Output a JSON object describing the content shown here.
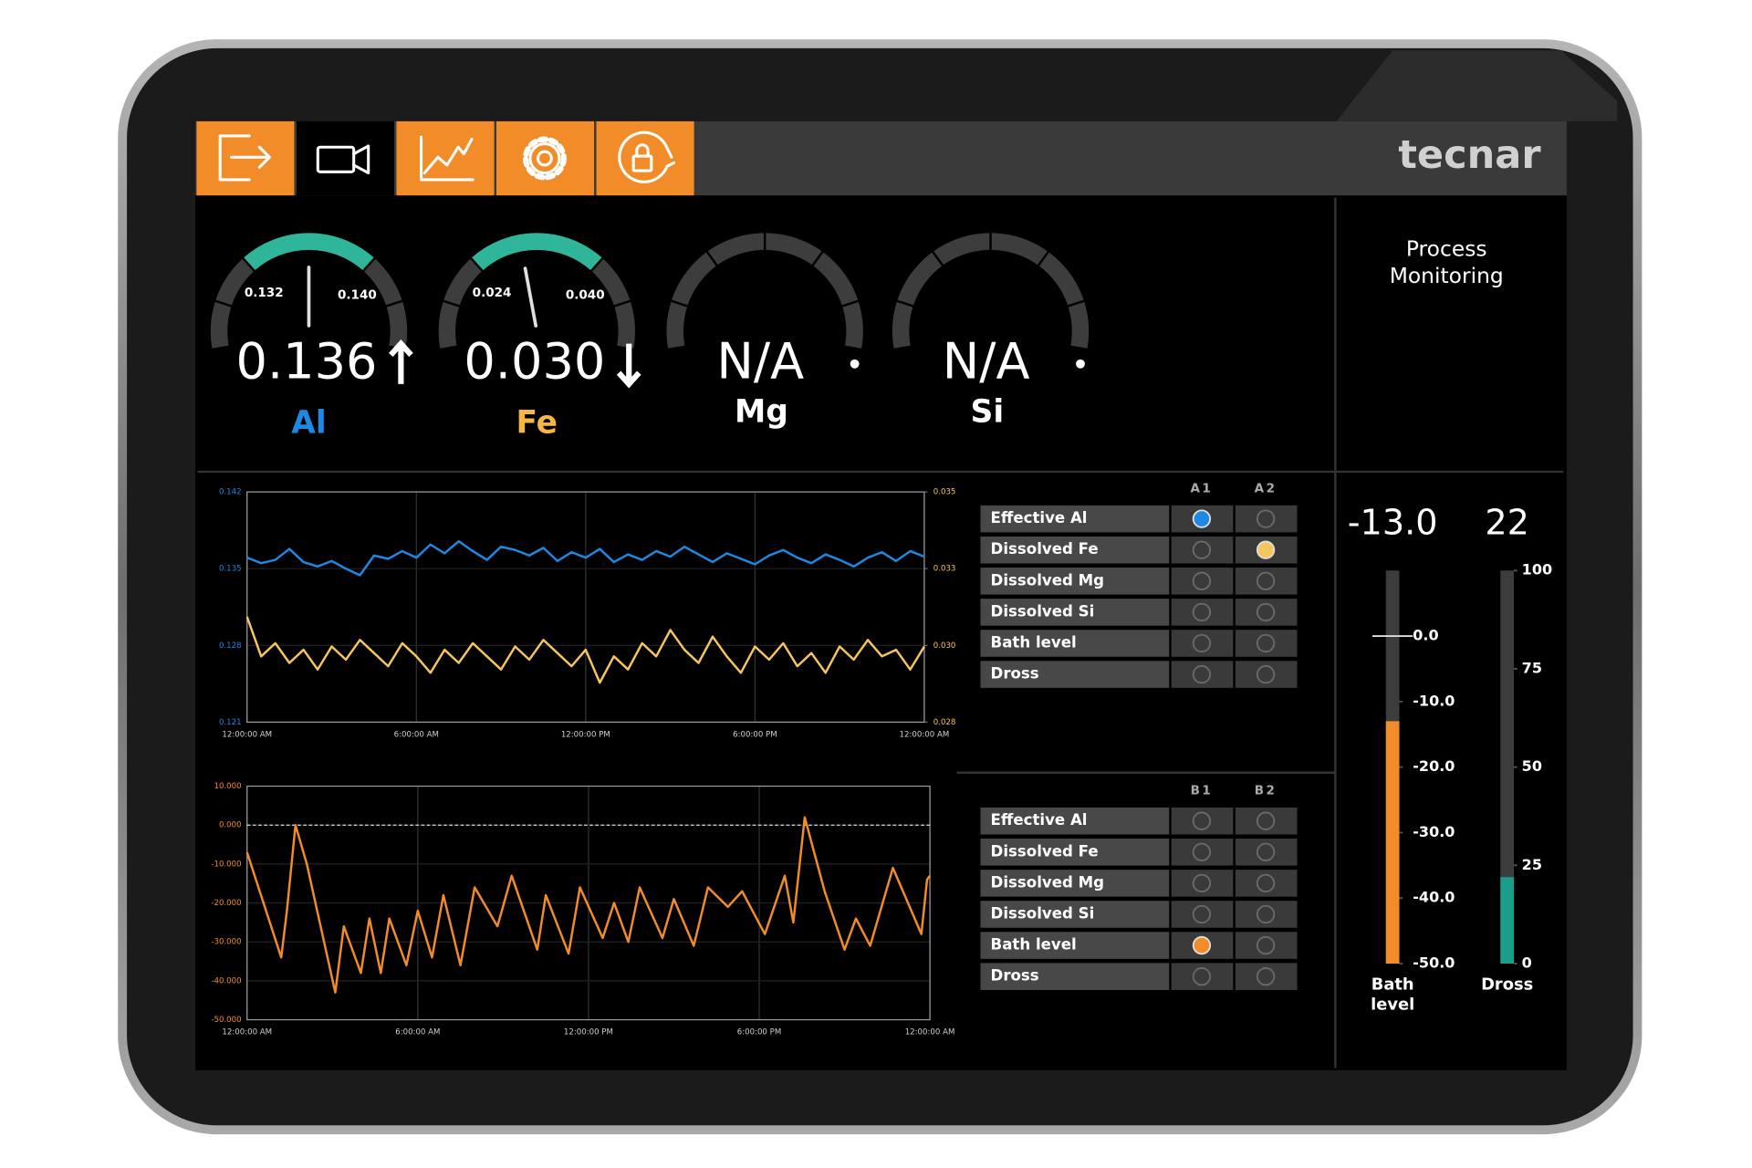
{
  "brand": "tecnar",
  "panel_title": "Process Monitoring",
  "gauges": [
    {
      "element": "Al",
      "value": 0.136,
      "min": 0.132,
      "max": {
        "value": 0.14,
        "label": "0.140"
      },
      "trend": "up",
      "color": "#1e88e5"
    },
    {
      "element": "Fe",
      "value": 0.03,
      "value_label": "0.030",
      "min": 0.024,
      "max": {
        "value": 0.04,
        "label": "0.040"
      },
      "trend": "down",
      "color": "#f5b740"
    },
    {
      "element": "Mg",
      "reading": "N/A",
      "color": "#ffffff"
    },
    {
      "element": "Si",
      "reading": "N/A",
      "color": "#ffffff"
    }
  ],
  "chart_data": [
    {
      "type": "line",
      "xlim": [
        0,
        24
      ],
      "xticks": [
        {
          "value": 0,
          "label": "12:00:00 AM"
        },
        {
          "value": 6,
          "label": "6:00:00 AM"
        },
        {
          "value": 12,
          "label": "12:00:00 PM"
        },
        {
          "value": 18,
          "label": "6:00:00 PM"
        },
        {
          "value": 24,
          "label": "12:00:00 AM"
        }
      ],
      "ylim": [
        0.121,
        0.142
      ],
      "yticks": [
        0.121,
        0.128,
        0.135,
        0.142
      ],
      "y2lim": [
        0.028,
        0.035
      ],
      "y2ticks": [
        0.028,
        {
          "value": 0.03033,
          "label": "0.030"
        },
        {
          "value": 0.03267,
          "label": "0.033"
        },
        0.035
      ],
      "grid": true,
      "x": [
        0,
        0.5,
        1,
        1.5,
        2,
        2.5,
        3,
        3.5,
        4,
        4.5,
        5,
        5.5,
        6,
        6.5,
        7,
        7.5,
        8,
        8.5,
        9,
        9.5,
        10,
        10.5,
        11,
        11.5,
        12,
        12.5,
        13,
        13.5,
        14,
        14.5,
        15,
        15.5,
        16,
        16.5,
        17,
        17.5,
        18,
        18.5,
        19,
        19.5,
        20,
        20.5,
        21,
        21.5,
        22,
        22.5,
        23,
        23.5,
        24
      ],
      "series": [
        {
          "color": "#1e88e5",
          "values": [
            0.136,
            0.1355,
            0.1358,
            0.1368,
            0.1356,
            0.1352,
            0.1357,
            0.135,
            0.1344,
            0.1362,
            0.1359,
            0.1366,
            0.136,
            0.1372,
            0.1364,
            0.1375,
            0.1366,
            0.1358,
            0.137,
            0.1367,
            0.1362,
            0.1369,
            0.1357,
            0.1365,
            0.136,
            0.1368,
            0.1356,
            0.1363,
            0.1358,
            0.1366,
            0.1361,
            0.137,
            0.1363,
            0.1356,
            0.1364,
            0.1359,
            0.1354,
            0.1362,
            0.1367,
            0.136,
            0.1355,
            0.1363,
            0.1358,
            0.1352,
            0.136,
            0.1365,
            0.1357,
            0.1366,
            0.1361
          ]
        },
        {
          "color": "#f7c55e",
          "axis": "y2",
          "values": [
            0.0312,
            0.03,
            0.0304,
            0.0298,
            0.0302,
            0.0296,
            0.0303,
            0.0299,
            0.0305,
            0.0301,
            0.0297,
            0.0304,
            0.03,
            0.0295,
            0.0302,
            0.0298,
            0.0304,
            0.03,
            0.0296,
            0.0303,
            0.0299,
            0.0305,
            0.0301,
            0.0297,
            0.0302,
            0.0292,
            0.03,
            0.0296,
            0.0304,
            0.03,
            0.0308,
            0.0302,
            0.0298,
            0.0306,
            0.03,
            0.0295,
            0.0303,
            0.0299,
            0.0304,
            0.0297,
            0.0301,
            0.0295,
            0.0303,
            0.0299,
            0.0305,
            0.03,
            0.0302,
            0.0296,
            0.0303
          ]
        }
      ]
    },
    {
      "type": "line",
      "xlim": [
        0,
        24
      ],
      "xticks": [
        {
          "value": 0,
          "label": "12:00:00 AM"
        },
        {
          "value": 6,
          "label": "6:00:00 AM"
        },
        {
          "value": 12,
          "label": "12:00:00 PM"
        },
        {
          "value": 18,
          "label": "6:00:00 PM"
        },
        {
          "value": 24,
          "label": "12:00:00 AM"
        }
      ],
      "ylim": [
        -50,
        10
      ],
      "yticks": [
        {
          "value": -50,
          "label": "-50.000"
        },
        {
          "value": -40,
          "label": "-40.000"
        },
        {
          "value": -30,
          "label": "-30.000"
        },
        {
          "value": -20,
          "label": "-20.000"
        },
        {
          "value": -10,
          "label": "-10.000"
        },
        {
          "value": 0,
          "label": "0.000"
        },
        {
          "value": 10,
          "label": "10.000"
        }
      ],
      "grid": true,
      "reference_line": 0,
      "x": [
        0,
        1.2,
        1.4,
        1.7,
        2.1,
        3.1,
        3.4,
        4.0,
        4.3,
        4.7,
        5.0,
        5.6,
        6.0,
        6.5,
        6.9,
        7.5,
        8.0,
        8.8,
        9.3,
        10.2,
        10.5,
        11.3,
        11.7,
        12.5,
        12.9,
        13.4,
        13.8,
        14.6,
        15.0,
        15.7,
        16.2,
        16.9,
        17.4,
        18.2,
        18.9,
        19.2,
        19.6,
        20.3,
        21.0,
        21.4,
        21.9,
        22.7,
        23.7,
        23.9,
        24
      ],
      "series": [
        {
          "color": "#f28c28",
          "values": [
            -7,
            -34,
            -22,
            0,
            -10,
            -43,
            -26,
            -38,
            -24,
            -38,
            -24,
            -36,
            -22,
            -34,
            -18,
            -36,
            -16,
            -26,
            -13,
            -32,
            -18,
            -33,
            -16,
            -29,
            -20,
            -30,
            -16,
            -29,
            -19,
            -31,
            -16,
            -21,
            -17,
            -28,
            -13,
            -25,
            2,
            -17,
            -32,
            -24,
            -31,
            -11,
            -28,
            -14,
            -13
          ]
        }
      ]
    }
  ],
  "tables": [
    {
      "columns": [
        "A1",
        "A2"
      ],
      "rows": [
        {
          "label": "Effective Al",
          "lit": [
            true,
            false
          ],
          "color": "#1e88e5"
        },
        {
          "label": "Dissolved Fe",
          "lit": [
            false,
            true
          ],
          "color": "#f7c55e"
        },
        {
          "label": "Dissolved Mg",
          "lit": [
            false,
            false
          ]
        },
        {
          "label": "Dissolved Si",
          "lit": [
            false,
            false
          ]
        },
        {
          "label": "Bath level",
          "lit": [
            false,
            false
          ]
        },
        {
          "label": "Dross",
          "lit": [
            false,
            false
          ]
        }
      ]
    },
    {
      "columns": [
        "B1",
        "B2"
      ],
      "rows": [
        {
          "label": "Effective Al",
          "lit": [
            false,
            false
          ]
        },
        {
          "label": "Dissolved Fe",
          "lit": [
            false,
            false
          ]
        },
        {
          "label": "Dissolved Mg",
          "lit": [
            false,
            false
          ]
        },
        {
          "label": "Dissolved Si",
          "lit": [
            false,
            false
          ]
        },
        {
          "label": "Bath level",
          "lit": [
            true,
            false
          ],
          "color": "#f28c28"
        },
        {
          "label": "Dross",
          "lit": [
            false,
            false
          ]
        }
      ]
    }
  ],
  "level_bars": [
    {
      "label": "Bath level",
      "value": -13,
      "value_label": "-13.0",
      "color": "#f28c28",
      "ylim": [
        -50,
        10
      ],
      "yticks": [
        {
          "value": 0,
          "label": "0.0"
        },
        {
          "value": -10,
          "label": "-10.0"
        },
        {
          "value": -20,
          "label": "-20.0"
        },
        {
          "value": -30,
          "label": "-30.0"
        },
        {
          "value": -40,
          "label": "-40.0"
        },
        {
          "value": -50,
          "label": "-50.0"
        }
      ]
    },
    {
      "label": "Dross",
      "value": 22,
      "color": "#1a9e8c",
      "ylim": [
        0,
        100
      ],
      "yticks": [
        100,
        75,
        50,
        25,
        0
      ]
    }
  ]
}
